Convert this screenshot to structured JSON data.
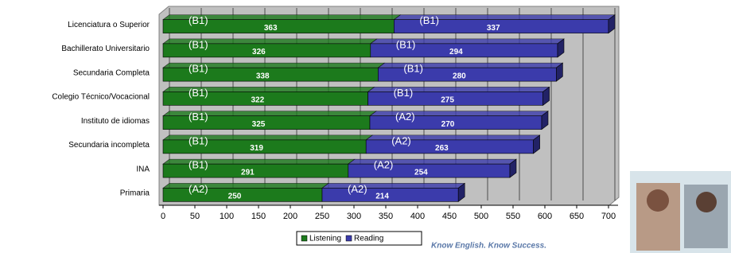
{
  "chart_data": {
    "type": "stacked-bar-horizontal",
    "categories": [
      "Licenciatura o Superior",
      "Bachillerato Universitario",
      "Secundaria Completa",
      "Colegio Técnico/Vocacional",
      "Instituto de idiomas",
      "Secundaria incompleta",
      "INA",
      "Primaria"
    ],
    "series": [
      {
        "name": "Listening",
        "color": "#1c7a1c",
        "values": [
          363,
          326,
          338,
          322,
          325,
          319,
          291,
          250
        ],
        "levels": [
          "(B1)",
          "(B1)",
          "(B1)",
          "(B1)",
          "(B1)",
          "(B1)",
          "(B1)",
          "(A2)"
        ]
      },
      {
        "name": "Reading",
        "color": "#3b3bab",
        "values": [
          337,
          294,
          280,
          275,
          270,
          263,
          254,
          214
        ],
        "levels": [
          "(B1)",
          "(B1)",
          "(B1)",
          "(B1)",
          "(A2)",
          "(A2)",
          "(A2)",
          "(A2)"
        ]
      }
    ],
    "xlim": [
      0,
      700
    ],
    "xticks": [
      0,
      50,
      100,
      150,
      200,
      250,
      300,
      350,
      400,
      450,
      500,
      550,
      600,
      650,
      700
    ],
    "grid": true
  },
  "footer": "Know English. Know Success."
}
